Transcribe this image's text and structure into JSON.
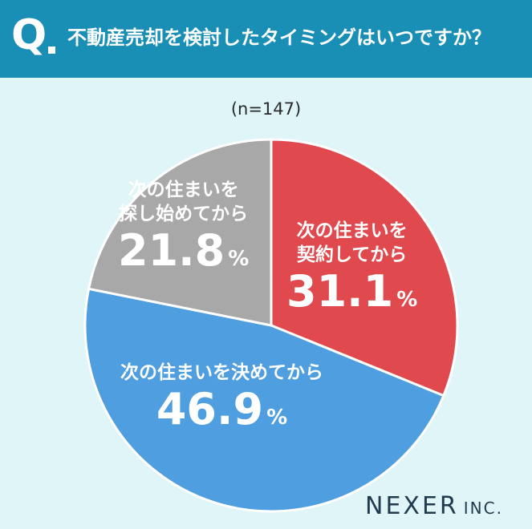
{
  "header": {
    "q_letter": "Q",
    "question": "不動産売却を検討したタイミングはいつですか？"
  },
  "sample_size": "(n=147)",
  "chart_data": {
    "type": "pie",
    "title": "不動産売却を検討したタイミングはいつですか？",
    "slices": [
      {
        "label": "次の住まいを契約してから",
        "value": 31.1,
        "color": "#e04a4f"
      },
      {
        "label": "次の住まいを決めてから",
        "value": 46.9,
        "color": "#4f9ee0"
      },
      {
        "label": "次の住まいを探し始めてから",
        "value": 21.8,
        "color": "#a8a8a8"
      }
    ],
    "unit": "%"
  },
  "labels": {
    "red_line1": "次の住まいを",
    "red_line2": "契約してから",
    "red_value": "31.1",
    "blue_line1": "次の住まいを決めてから",
    "blue_value": "46.9",
    "gray_line1": "次の住まいを",
    "gray_line2": "探し始めてから",
    "gray_value": "21.8",
    "percent": "%"
  },
  "logo": {
    "name": "NEXER",
    "suffix": "INC."
  }
}
